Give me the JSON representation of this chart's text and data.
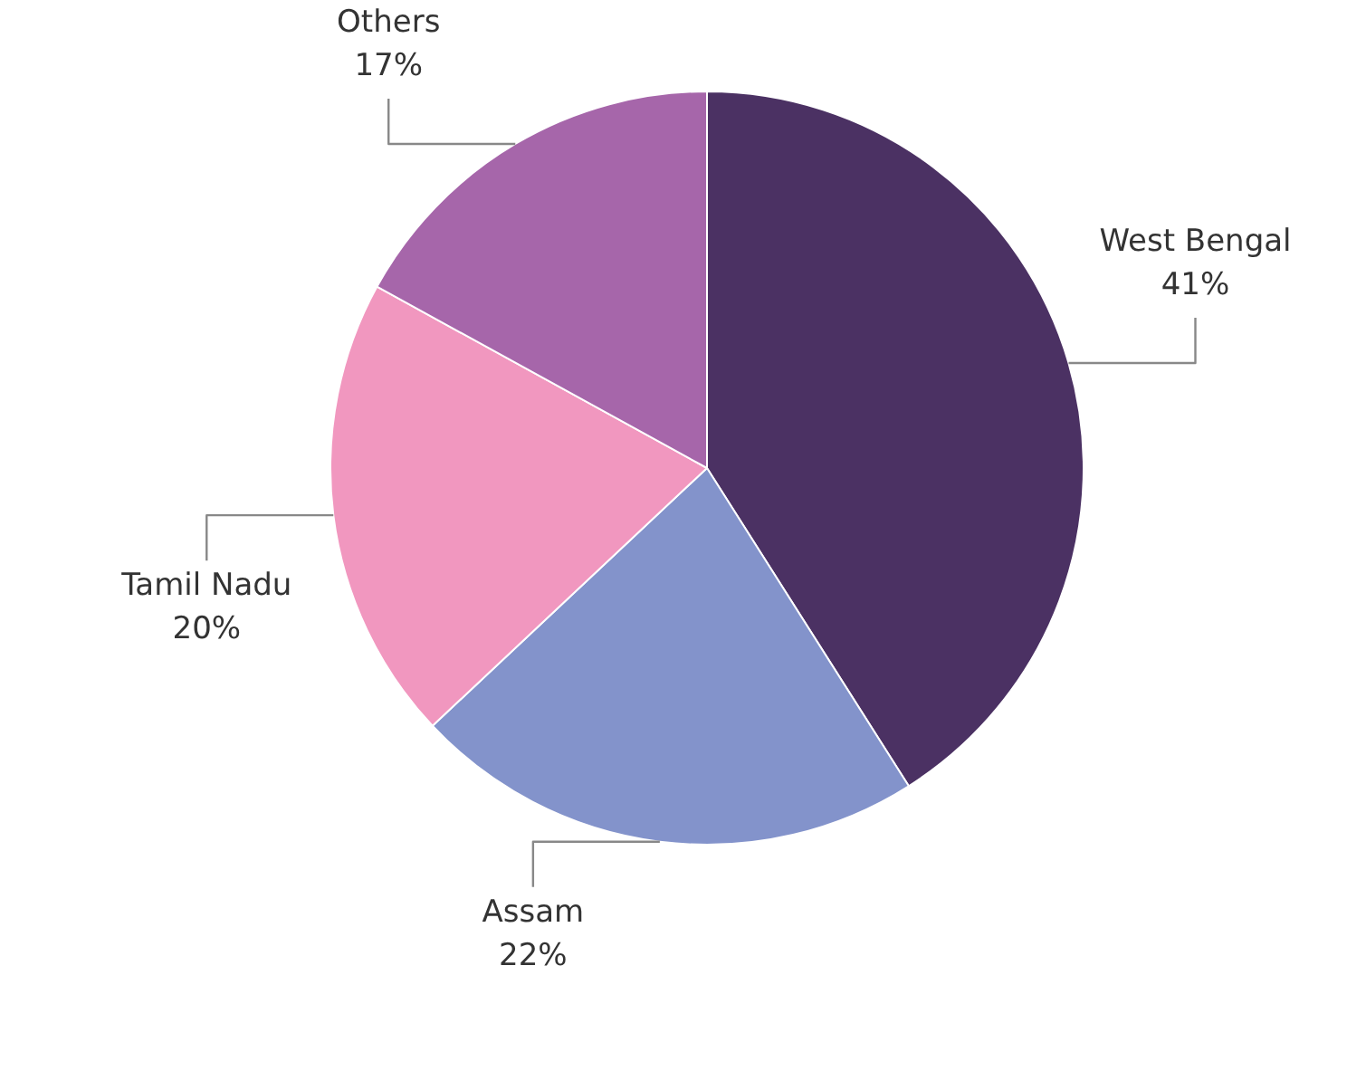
{
  "chart_data": {
    "type": "pie",
    "categories": [
      "West Bengal",
      "Assam",
      "Tamil Nadu",
      "Others"
    ],
    "values": [
      41,
      22,
      20,
      17
    ],
    "value_labels": [
      "41%",
      "22%",
      "20%",
      "17%"
    ],
    "colors": [
      "#4b3163",
      "#8393cb",
      "#f197bf",
      "#a666aa"
    ]
  }
}
